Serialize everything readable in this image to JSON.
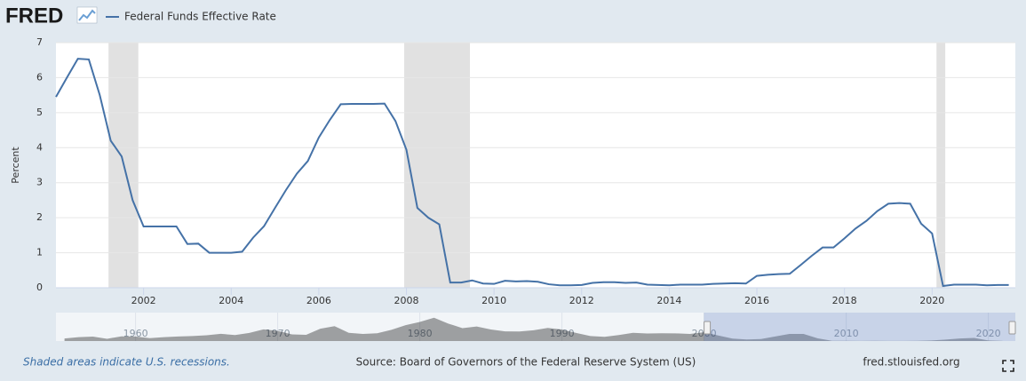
{
  "logo": "FRED",
  "chart_data": {
    "type": "line",
    "y_label": "Percent",
    "x": [
      2000,
      2000.25,
      2000.5,
      2000.75,
      2001,
      2001.25,
      2001.5,
      2001.75,
      2002,
      2002.25,
      2002.5,
      2002.75,
      2003,
      2003.25,
      2003.5,
      2003.75,
      2004,
      2004.25,
      2004.5,
      2004.75,
      2005,
      2005.25,
      2005.5,
      2005.75,
      2006,
      2006.25,
      2006.5,
      2006.75,
      2007,
      2007.25,
      2007.5,
      2007.75,
      2008,
      2008.25,
      2008.5,
      2008.75,
      2009,
      2009.25,
      2009.5,
      2009.75,
      2010,
      2010.25,
      2010.5,
      2010.75,
      2011,
      2011.25,
      2011.5,
      2011.75,
      2012,
      2012.25,
      2012.5,
      2012.75,
      2013,
      2013.25,
      2013.5,
      2013.75,
      2014,
      2014.25,
      2014.5,
      2014.75,
      2015,
      2015.25,
      2015.5,
      2015.75,
      2016,
      2016.25,
      2016.5,
      2016.75,
      2017,
      2017.25,
      2017.5,
      2017.75,
      2018,
      2018.25,
      2018.5,
      2018.75,
      2019,
      2019.25,
      2019.5,
      2019.75,
      2020,
      2020.25,
      2020.5,
      2020.75,
      2021,
      2021.25,
      2021.5,
      2021.75
    ],
    "series": [
      {
        "name": "Federal Funds Effective Rate",
        "color": "#4572a7",
        "values": [
          5.45,
          6.0,
          6.54,
          6.52,
          5.5,
          4.2,
          3.75,
          2.5,
          1.75,
          1.75,
          1.75,
          1.75,
          1.25,
          1.26,
          1.0,
          1.0,
          1.0,
          1.03,
          1.43,
          1.76,
          2.28,
          2.79,
          3.26,
          3.62,
          4.29,
          4.79,
          5.24,
          5.25,
          5.25,
          5.25,
          5.26,
          4.76,
          3.94,
          2.28,
          2.0,
          1.81,
          0.15,
          0.15,
          0.21,
          0.12,
          0.11,
          0.2,
          0.18,
          0.19,
          0.17,
          0.1,
          0.07,
          0.07,
          0.08,
          0.14,
          0.16,
          0.16,
          0.14,
          0.15,
          0.09,
          0.08,
          0.07,
          0.09,
          0.09,
          0.09,
          0.11,
          0.12,
          0.13,
          0.12,
          0.34,
          0.37,
          0.39,
          0.4,
          0.65,
          0.91,
          1.15,
          1.15,
          1.41,
          1.69,
          1.91,
          2.19,
          2.4,
          2.42,
          2.4,
          1.83,
          1.55,
          0.05,
          0.09,
          0.09,
          0.09,
          0.07,
          0.08,
          0.08
        ]
      }
    ],
    "xlim": [
      2000,
      2021.9
    ],
    "xticks": [
      2002,
      2004,
      2006,
      2008,
      2010,
      2012,
      2014,
      2016,
      2018,
      2020
    ],
    "ylim": [
      0,
      7
    ],
    "yticks": [
      0,
      1,
      2,
      3,
      4,
      5,
      6,
      7
    ],
    "grid": true,
    "recessions": [
      {
        "start": 2001.2,
        "end": 2001.88
      },
      {
        "start": 2007.95,
        "end": 2009.45
      },
      {
        "start": 2020.1,
        "end": 2020.3
      }
    ],
    "recession_color": "#e1e1e1",
    "navigator": {
      "x": [
        1955,
        1956,
        1957,
        1958,
        1959,
        1960,
        1961,
        1962,
        1963,
        1964,
        1965,
        1966,
        1967,
        1968,
        1969,
        1970,
        1971,
        1972,
        1973,
        1974,
        1975,
        1976,
        1977,
        1978,
        1979,
        1980,
        1981,
        1982,
        1983,
        1984,
        1985,
        1986,
        1987,
        1988,
        1989,
        1990,
        1991,
        1992,
        1993,
        1994,
        1995,
        1996,
        1997,
        1998,
        1999,
        2000,
        2001,
        2002,
        2003,
        2004,
        2005,
        2006,
        2007,
        2008,
        2009,
        2010,
        2011,
        2012,
        2013,
        2014,
        2015,
        2016,
        2017,
        2018,
        2019,
        2020,
        2021
      ],
      "values": [
        1.8,
        2.7,
        3.1,
        1.6,
        3.3,
        3.2,
        2.0,
        2.7,
        3.2,
        3.5,
        4.1,
        5.1,
        4.2,
        5.7,
        8.2,
        7.2,
        4.7,
        4.4,
        8.7,
        10.5,
        5.8,
        5.0,
        5.5,
        7.9,
        11.2,
        13.4,
        16.4,
        12.3,
        9.1,
        10.2,
        8.1,
        6.8,
        6.7,
        7.6,
        9.2,
        8.1,
        5.7,
        3.5,
        3.0,
        4.2,
        5.8,
        5.3,
        5.5,
        5.4,
        5.0,
        6.2,
        3.9,
        1.7,
        1.1,
        1.4,
        3.2,
        5.0,
        5.0,
        1.9,
        0.16,
        0.18,
        0.1,
        0.14,
        0.11,
        0.09,
        0.13,
        0.4,
        1.0,
        1.83,
        2.16,
        0.38,
        0.08
      ],
      "xlim": [
        1954.4,
        2021.9
      ],
      "ylim": [
        0,
        20
      ],
      "xticks": [
        1960,
        1970,
        1980,
        1990,
        2000,
        2010,
        2020
      ]
    }
  },
  "footer": {
    "note": "Shaded areas indicate U.S. recessions.",
    "source": "Source: Board of Governors of the Federal Reserve System (US)",
    "site": "fred.stlouisfed.org"
  }
}
